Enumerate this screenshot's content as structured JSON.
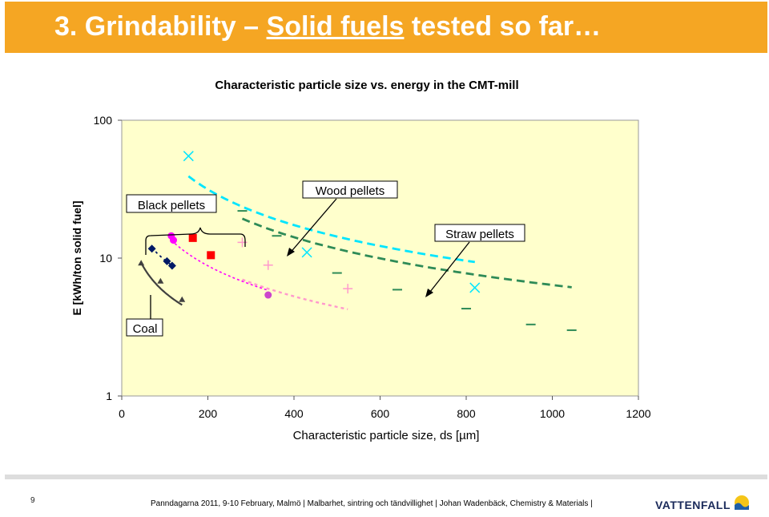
{
  "slide": {
    "title_prefix": "3. Grindability –",
    "title_underlined": "Solid fuels",
    "title_suffix": " tested so far…",
    "page_number": "9",
    "footer": "Panndagarna 2011, 9-10 February, Malmö | Malbarhet, sintring och tändvillighet | Johan Wadenbäck, Chemistry & Materials |",
    "logo_text": "VATTENFALL"
  },
  "colors": {
    "title_bar": "#f5a623",
    "plot_bg": "#ffffcc",
    "coal": "#404040",
    "black_pellets_navy": "#001a66",
    "black_pellets_magenta": "#ff00ff",
    "black_pellets_red": "#ff0000",
    "wood_cyan": "#00e5ff",
    "wood_pink": "#ff99cc",
    "wood_purple": "#cc44cc",
    "straw_green": "#2e8b57"
  },
  "chart_data": {
    "type": "scatter",
    "title": "Characteristic particle size vs. energy in the CMT-mill",
    "xlabel": "Characteristic particle size, ds [µm]",
    "ylabel": "E [kWh/ton solid fuel]",
    "xlim": [
      0,
      1200
    ],
    "ylim": [
      1,
      100
    ],
    "yscale": "log",
    "xticks": [
      "0",
      "200",
      "400",
      "600",
      "800",
      "1000",
      "1200"
    ],
    "yticks": [
      "1",
      "10",
      "100"
    ],
    "grid": false,
    "annotations": [
      "Black pellets",
      "Wood pellets",
      "Straw pellets",
      "Coal"
    ],
    "series": [
      {
        "group": "coal",
        "marker": "triangle",
        "color": "#404040",
        "dash": "0",
        "points": [
          [
            45,
            9.2
          ],
          [
            90,
            6.8
          ],
          [
            140,
            5.0
          ]
        ]
      },
      {
        "group": "black",
        "marker": "diamond",
        "color": "#001a66",
        "dash": "3,4",
        "points": [
          [
            70,
            11.7
          ],
          [
            105,
            9.5
          ],
          [
            117,
            8.8
          ]
        ]
      },
      {
        "group": "black",
        "marker": "circle",
        "color": "#ff00ff",
        "dash": "0",
        "points": [
          [
            115,
            14.5
          ],
          [
            120,
            13.5
          ]
        ]
      },
      {
        "group": "black",
        "marker": "square",
        "color": "#ff0000",
        "dash": "0",
        "points": [
          [
            165,
            14.0
          ],
          [
            207,
            10.5
          ]
        ]
      },
      {
        "group": "wood",
        "marker": "x",
        "color": "#00e5ff",
        "dash": "10,6",
        "points": [
          [
            155,
            55
          ],
          [
            430,
            11.0
          ],
          [
            820,
            6.1
          ]
        ]
      },
      {
        "group": "wood",
        "marker": "plus",
        "color": "#ff99cc",
        "dash": "4,4",
        "points": [
          [
            280,
            13.0
          ],
          [
            340,
            8.9
          ],
          [
            525,
            6.0
          ]
        ]
      },
      {
        "group": "wood",
        "marker": "circle",
        "color": "#cc44cc",
        "dash": "0",
        "points": [
          [
            340,
            5.4
          ]
        ]
      },
      {
        "group": "straw",
        "marker": "dash",
        "color": "#2e8b57",
        "dash": "10,6",
        "points": [
          [
            280,
            22
          ],
          [
            360,
            14.5
          ],
          [
            500,
            7.8
          ],
          [
            640,
            5.9
          ],
          [
            800,
            4.3
          ],
          [
            950,
            3.3
          ],
          [
            1045,
            3.0
          ]
        ]
      }
    ],
    "fits": [
      {
        "color": "#404040",
        "dash": "0",
        "width": 2.2,
        "x": [
          45,
          140
        ],
        "a": 98,
        "b": -0.62
      },
      {
        "color": "#001a66",
        "dash": "3,4",
        "width": 1.8,
        "x": [
          70,
          117
        ],
        "a": 140,
        "b": -0.58
      },
      {
        "color": "#ff00ff",
        "dash": "3,3",
        "width": 1.6,
        "x": [
          115,
          340
        ],
        "a": 520,
        "b": -0.77
      },
      {
        "color": "#00e5ff",
        "dash": "10,6",
        "width": 2.8,
        "x": [
          155,
          820
        ],
        "a": 3000,
        "b": -0.86
      },
      {
        "color": "#ff99cc",
        "dash": "4,4",
        "width": 2.4,
        "x": [
          280,
          525
        ],
        "a": 600,
        "b": -0.79
      },
      {
        "color": "#2e8b57",
        "dash": "10,6",
        "width": 2.8,
        "x": [
          280,
          1045
        ],
        "a": 2600,
        "b": -0.87
      }
    ]
  }
}
